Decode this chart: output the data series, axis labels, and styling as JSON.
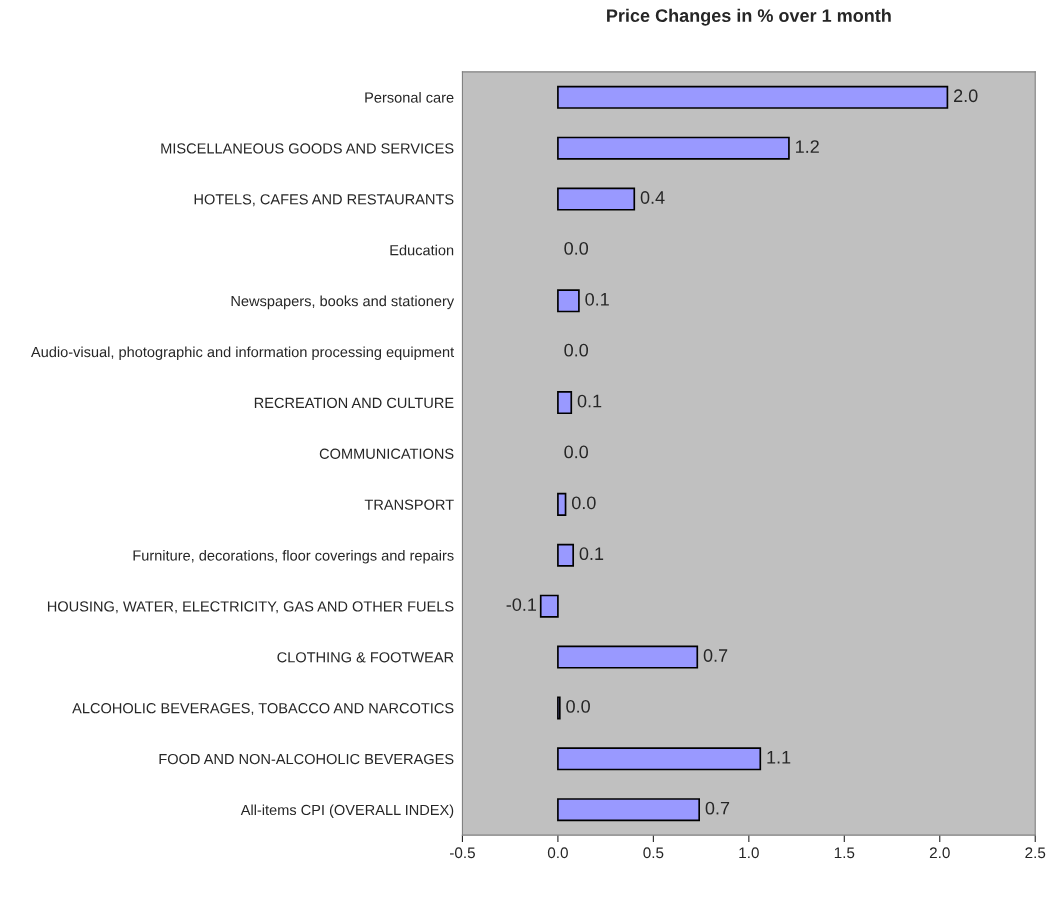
{
  "chart_data": {
    "type": "bar",
    "orientation": "horizontal",
    "title": "Price Changes in % over 1 month",
    "categories": [
      "Personal care",
      "MISCELLANEOUS GOODS AND SERVICES",
      "HOTELS, CAFES AND RESTAURANTS",
      "Education",
      "Newspapers, books and stationery",
      "Audio-visual, photographic and information processing equipment",
      "RECREATION AND CULTURE",
      "COMMUNICATIONS",
      "TRANSPORT",
      "Furniture, decorations, floor coverings and repairs",
      "HOUSING, WATER, ELECTRICITY, GAS AND OTHER FUELS",
      "CLOTHING & FOOTWEAR",
      "ALCOHOLIC BEVERAGES, TOBACCO AND NARCOTICS",
      "FOOD AND NON-ALCOHOLIC BEVERAGES",
      "All-items CPI (OVERALL INDEX)"
    ],
    "values": [
      2.04,
      1.21,
      0.4,
      0,
      0.11,
      0,
      0.07,
      0,
      0.04,
      0.08,
      -0.09,
      0.73,
      0.01,
      1.06,
      0.74
    ],
    "value_labels": [
      "2.0",
      "1.2",
      "0.4",
      "0.0",
      "0.1",
      "0.0",
      "0.1",
      "0.0",
      "0.0",
      "0.1",
      "-0.1",
      "0.7",
      "0.0",
      "1.1",
      "0.7"
    ],
    "color": "#9999ff",
    "xlim": [
      -0.5,
      2.5
    ],
    "xticks": [
      -0.5,
      {
        "value": 0,
        "label": "0.0"
      },
      0.5,
      {
        "value": 1,
        "label": "1.0"
      },
      1.5,
      {
        "value": 2,
        "label": "2.0"
      },
      2.5
    ],
    "grid": false,
    "legend": false
  }
}
